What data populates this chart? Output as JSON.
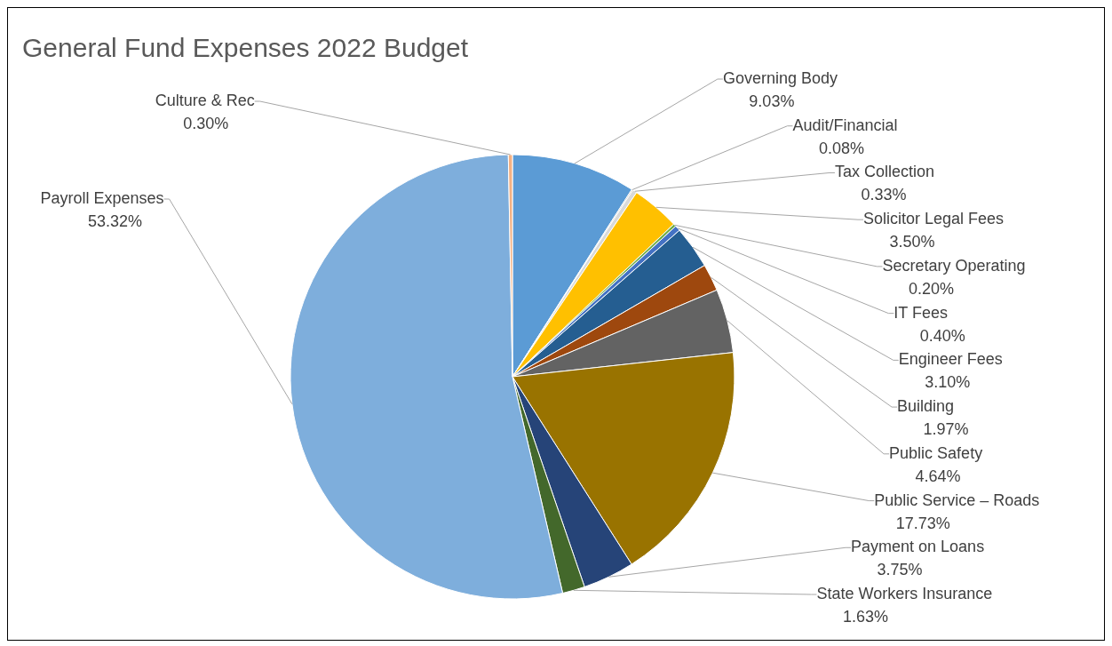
{
  "chart_data": {
    "type": "pie",
    "title": "General Fund Expenses 2022 Budget",
    "categories": [
      "Governing Body",
      "Audit/Financial",
      "Tax Collection",
      "Solicitor Legal Fees",
      "Secretary Operating",
      "IT Fees",
      "Engineer Fees",
      "Building",
      "Public Safety",
      "Public Service – Roads",
      "Payment on Loans",
      "State Workers Insurance",
      "Payroll Expenses",
      "Culture & Rec"
    ],
    "values": [
      9.03,
      0.08,
      0.33,
      3.5,
      0.2,
      0.4,
      3.1,
      1.97,
      4.64,
      17.73,
      3.75,
      1.63,
      53.32,
      0.3
    ],
    "value_labels": [
      "9.03%",
      "0.08%",
      "0.33%",
      "3.50%",
      "0.20%",
      "0.40%",
      "3.10%",
      "1.97%",
      "4.64%",
      "17.73%",
      "3.75%",
      "1.63%",
      "53.32%",
      "0.30%"
    ],
    "colors": [
      "#5b9bd5",
      "#a5a5a5",
      "#d9d9d9",
      "#ffc000",
      "#70ad47",
      "#4472c4",
      "#255e91",
      "#9e480e",
      "#636363",
      "#997300",
      "#264478",
      "#43682b",
      "#7eaedc",
      "#f4b183"
    ],
    "legend": false
  }
}
